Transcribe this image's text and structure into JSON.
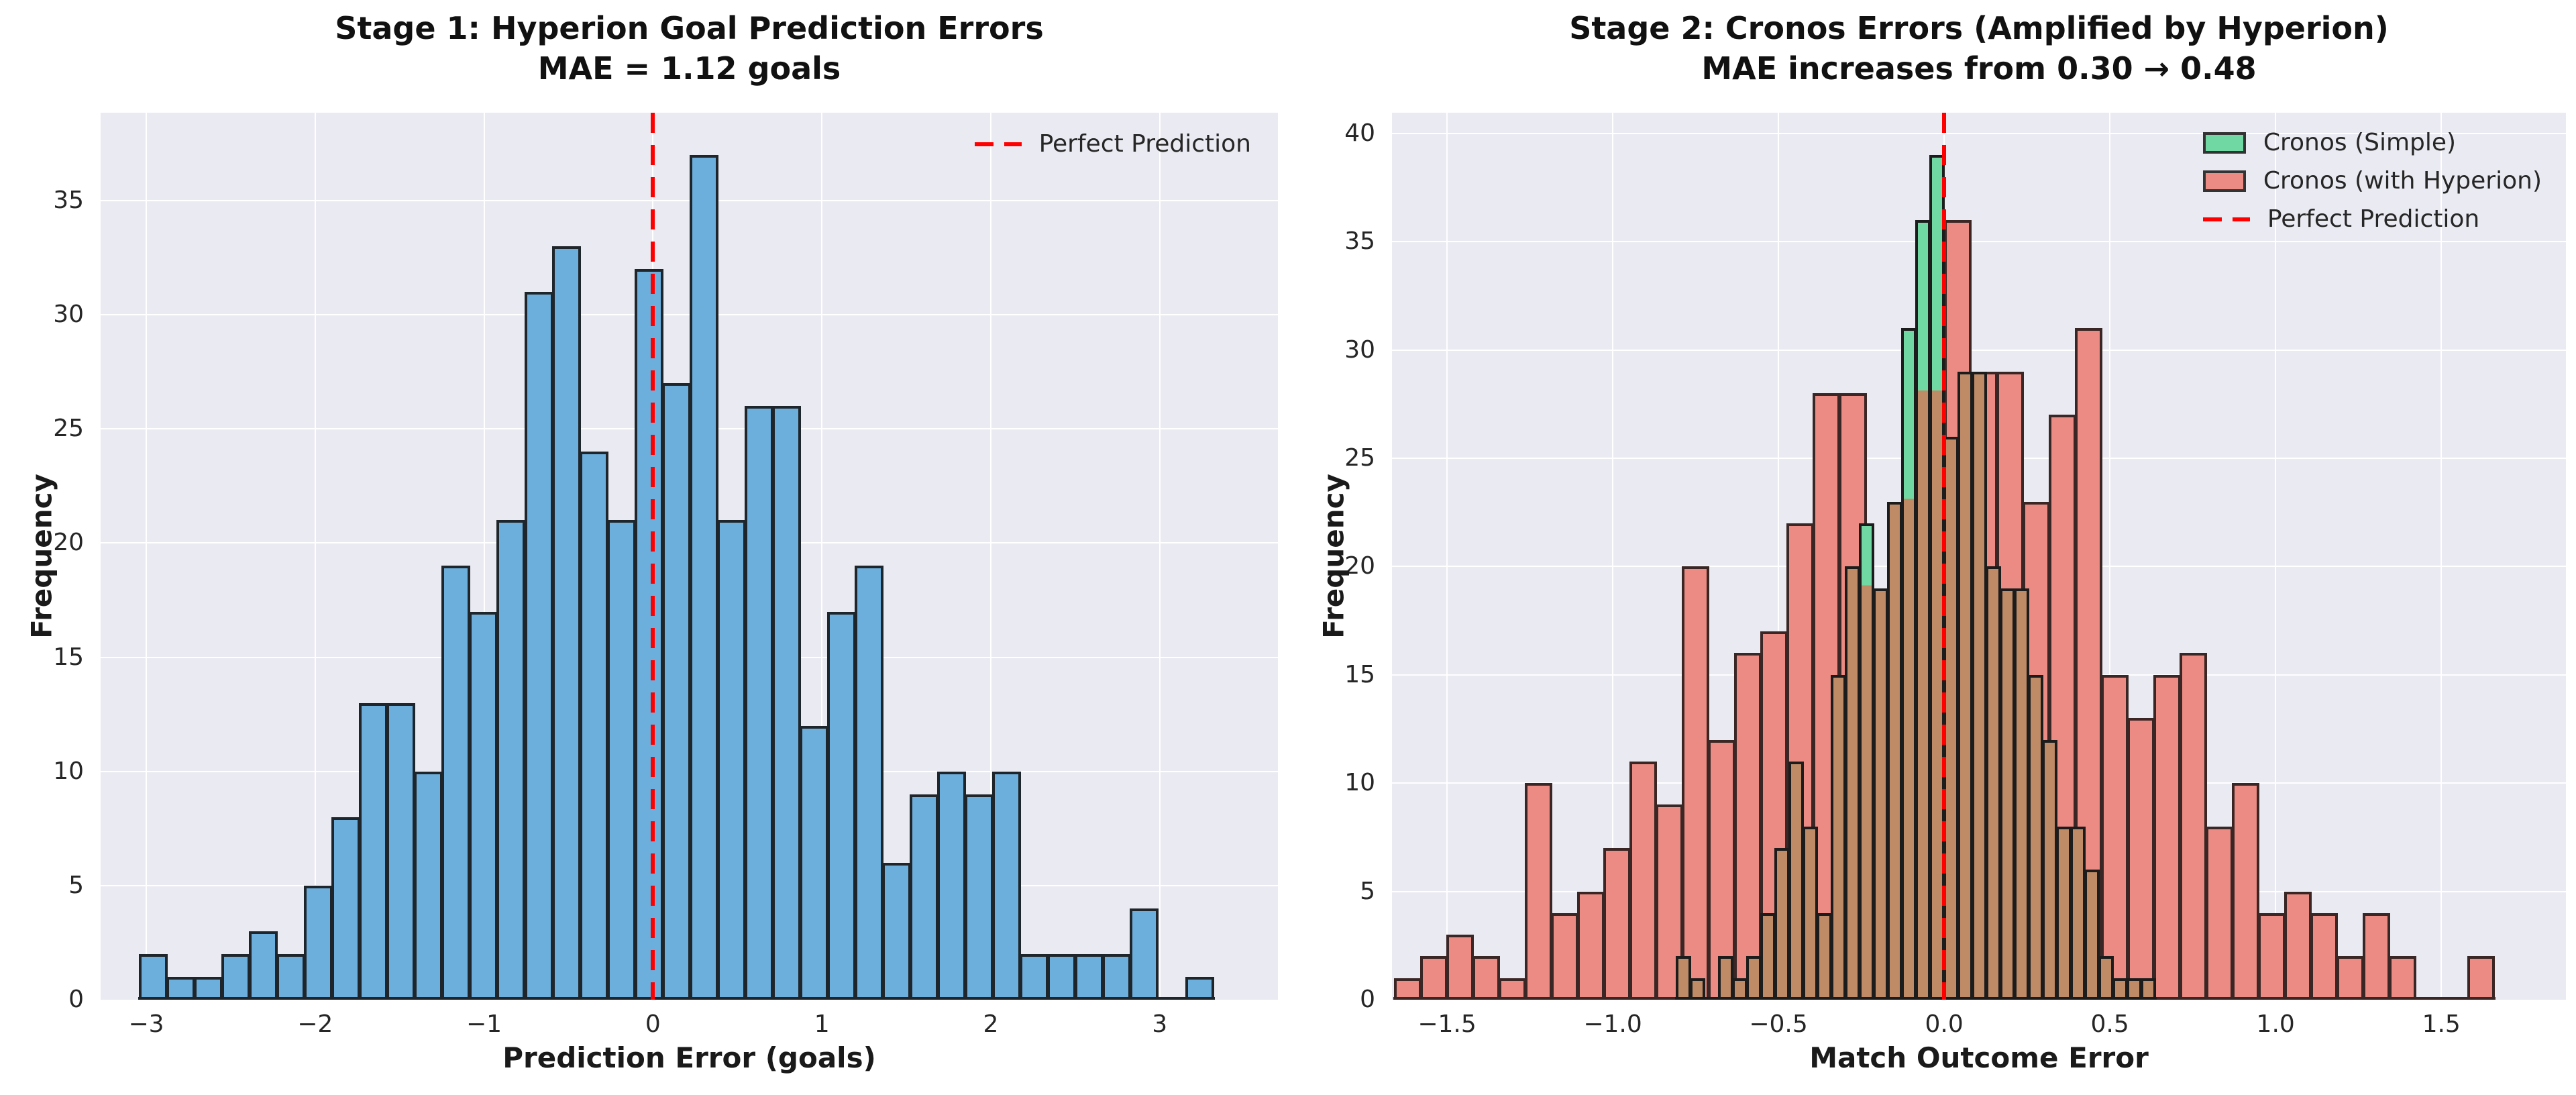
{
  "figure": {
    "background": "#ffffff",
    "panel_background": "#eaeaf2",
    "grid_color": "#ffffff",
    "tick_color": "#262626",
    "title_color": "#111111",
    "perfect_line_color": "#ff0000"
  },
  "charts": [
    {
      "title1": "Stage 1: Hyperion Goal Prediction Errors",
      "title2": "MAE = 1.12 goals",
      "xlabel": "Prediction Error (goals)",
      "ylabel": "Frequency",
      "legend": [
        {
          "type": "dash",
          "label": "Perfect Prediction",
          "color": "#ff0000"
        }
      ]
    },
    {
      "title1": "Stage 2: Cronos Errors (Amplified by Hyperion)",
      "title2": "MAE increases from 0.30 → 0.48",
      "xlabel": "Match Outcome Error",
      "ylabel": "Frequency",
      "legend": [
        {
          "type": "patch",
          "label": "Cronos (Simple)",
          "color": "#70d8a2"
        },
        {
          "type": "patch",
          "label": "Cronos (with Hyperion)",
          "color": "#ec8b84"
        },
        {
          "type": "dash",
          "label": "Perfect Prediction",
          "color": "#ff0000"
        }
      ]
    }
  ],
  "chart_data": [
    {
      "type": "bar",
      "subtype": "histogram",
      "title": "Stage 1: Hyperion Goal Prediction Errors — MAE = 1.12 goals",
      "xlabel": "Prediction Error (goals)",
      "ylabel": "Frequency",
      "xlim": [
        -3.27,
        3.7
      ],
      "ylim": [
        0,
        38.85
      ],
      "grid": true,
      "legend_position": "upper right",
      "x_ticks": {
        "values": [
          -3,
          -2,
          -1,
          0,
          1,
          2,
          3
        ],
        "labels": [
          "−3",
          "−2",
          "−1",
          "0",
          "1",
          "2",
          "3"
        ]
      },
      "y_ticks": {
        "values": [
          0,
          5,
          10,
          15,
          20,
          25,
          30,
          35
        ],
        "labels": [
          "0",
          "5",
          "10",
          "15",
          "20",
          "25",
          "30",
          "35"
        ]
      },
      "series": [
        {
          "name": "Hyperion goal prediction errors",
          "color": "#6caedc",
          "edge": "#1f262b",
          "bin_start": -3.04,
          "bin_width": 0.163,
          "values": [
            2,
            1,
            1,
            2,
            3,
            2,
            5,
            8,
            13,
            13,
            10,
            19,
            17,
            21,
            31,
            33,
            24,
            21,
            32,
            27,
            37,
            21,
            26,
            26,
            12,
            17,
            19,
            6,
            9,
            10,
            9,
            10,
            2,
            2,
            2,
            2,
            4,
            0,
            1
          ]
        }
      ],
      "vline": {
        "x": 0,
        "color": "#ff0000",
        "style": "dashed",
        "label": "Perfect Prediction"
      }
    },
    {
      "type": "bar",
      "subtype": "histogram",
      "title": "Stage 2: Cronos Errors (Amplified by Hyperion) — MAE increases from 0.30 → 0.48",
      "xlabel": "Match Outcome Error",
      "ylabel": "Frequency",
      "xlim": [
        -1.666,
        1.876
      ],
      "ylim": [
        0,
        40.95
      ],
      "grid": true,
      "legend_position": "upper right",
      "x_ticks": {
        "values": [
          -1.5,
          -1.0,
          -0.5,
          0.0,
          0.5,
          1.0,
          1.5
        ],
        "labels": [
          "−1.5",
          "−1.0",
          "−0.5",
          "0.0",
          "0.5",
          "1.0",
          "1.5"
        ]
      },
      "y_ticks": {
        "values": [
          0,
          5,
          10,
          15,
          20,
          25,
          30,
          35,
          40
        ],
        "labels": [
          "0",
          "5",
          "10",
          "15",
          "20",
          "25",
          "30",
          "35",
          "40"
        ]
      },
      "series": [
        {
          "name": "Cronos (with Hyperion)",
          "color": "#ec8b84",
          "edge": "#3a2624",
          "bin_start": -1.658,
          "bin_width": 0.079,
          "values": [
            1,
            2,
            3,
            2,
            1,
            10,
            4,
            5,
            7,
            11,
            9,
            20,
            12,
            16,
            17,
            22,
            28,
            28,
            19,
            23,
            28,
            36,
            29,
            29,
            23,
            27,
            31,
            15,
            13,
            15,
            16,
            8,
            10,
            4,
            5,
            4,
            2,
            4,
            2,
            0,
            0,
            2
          ]
        },
        {
          "name": "Cronos (Simple)",
          "color": "#70d8a2",
          "edge": "#1c1c1c",
          "overlap_with": 0,
          "overlap_color": "#bf8a66",
          "bin_start": -0.8075,
          "bin_width": 0.0425,
          "values": [
            2,
            1,
            0,
            2,
            1,
            2,
            4,
            7,
            11,
            8,
            4,
            15,
            20,
            22,
            19,
            23,
            31,
            36,
            39,
            26,
            29,
            29,
            20,
            19,
            19,
            15,
            12,
            8,
            8,
            6,
            2,
            1,
            1,
            1
          ]
        }
      ],
      "vline": {
        "x": 0,
        "color": "#ff0000",
        "style": "dashed",
        "label": "Perfect Prediction"
      }
    }
  ]
}
